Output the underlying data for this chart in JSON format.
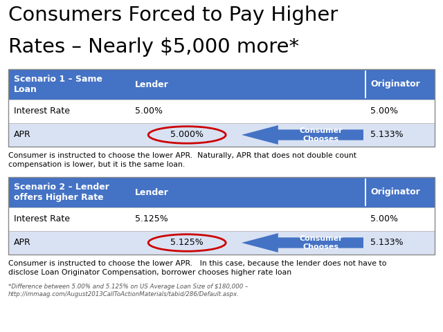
{
  "title_line1": "Consumers Forced to Pay Higher",
  "title_line2": "Rates – Nearly $5,000 more*",
  "title_fontsize": 21,
  "bg_color": "#ffffff",
  "header_bg": "#4472C4",
  "header_fg": "#ffffff",
  "row_bg_alt": "#d9e2f3",
  "row_bg_white": "#ffffff",
  "table1_header": [
    "Scenario 1 – Same\nLoan",
    "Lender",
    "Originator"
  ],
  "table1_rows": [
    [
      "Interest Rate",
      "5.00%",
      "",
      "5.00%"
    ],
    [
      "APR",
      "5.000%",
      "Consumer\nChooses",
      "5.133%"
    ]
  ],
  "table2_header": [
    "Scenario 2 – Lender\noffers Higher Rate",
    "Lender",
    "Originator"
  ],
  "table2_rows": [
    [
      "Interest Rate",
      "5.125%",
      "",
      "5.00%"
    ],
    [
      "APR",
      "5.125%",
      "Consumer\nChooses",
      "5.133%"
    ]
  ],
  "note1": "Consumer is instructed to choose the lower APR.  Naturally, APR that does not double count\ncompensation is lower, but it is the same loan.",
  "note2": "Consumer is instructed to choose the lower APR.   In this case, because the lender does not have to\ndisclose Loan Originator Compensation, borrower chooses higher rate loan",
  "footnote": "*Difference between 5.00% and 5.125% on US Average Loan Size of $180,000 –\nhttp://immaag.com/August2013CallToActionMaterials/tabid/286/Default.aspx.",
  "arrow_color": "#4472C4",
  "circle_color": "#cc0000",
  "note_fontsize": 7.8,
  "footnote_fontsize": 6.2,
  "cell_fontsize": 9,
  "header_fontsize": 9
}
